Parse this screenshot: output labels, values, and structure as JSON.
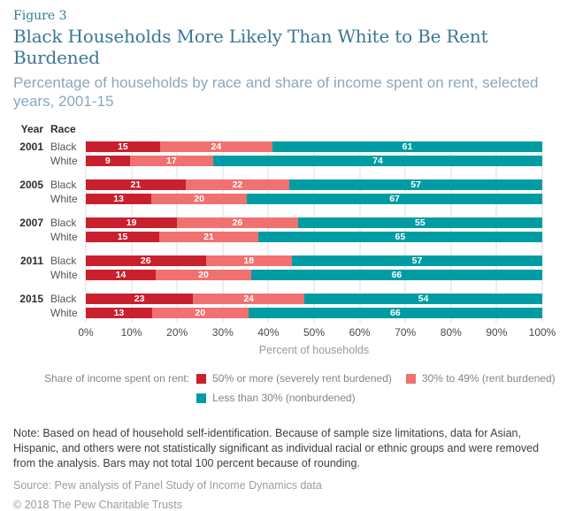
{
  "figure_label": "Figure 3",
  "chart_data": {
    "type": "bar",
    "stacked": true,
    "orientation": "horizontal",
    "title": "Black Households More Likely Than White to Be Rent Burdened",
    "subtitle": "Percentage of households by race and share of income spent on rent, selected years, 2001-15",
    "xlabel": "Percent of households",
    "xlim": [
      0,
      100
    ],
    "x_ticks": [
      "0%",
      "10%",
      "20%",
      "30%",
      "40%",
      "50%",
      "60%",
      "70%",
      "80%",
      "90%",
      "100%"
    ],
    "grid": true,
    "col_headers": {
      "year": "Year",
      "race": "Race"
    },
    "series": [
      {
        "name": "50% or more (severely rent burdened)",
        "color": "#C9202E"
      },
      {
        "name": "30% to 49% (rent burdened)",
        "color": "#F0716F"
      },
      {
        "name": "Less than 30% (nonburdened)",
        "color": "#009CA3"
      }
    ],
    "groups": [
      {
        "year": "2001",
        "rows": [
          {
            "race": "Black",
            "values": [
              15,
              24,
              61
            ]
          },
          {
            "race": "White",
            "values": [
              9,
              17,
              74
            ]
          }
        ]
      },
      {
        "year": "2005",
        "rows": [
          {
            "race": "Black",
            "values": [
              21,
              22,
              57
            ]
          },
          {
            "race": "White",
            "values": [
              13,
              20,
              67
            ]
          }
        ]
      },
      {
        "year": "2007",
        "rows": [
          {
            "race": "Black",
            "values": [
              19,
              26,
              55
            ]
          },
          {
            "race": "White",
            "values": [
              15,
              21,
              65
            ]
          }
        ]
      },
      {
        "year": "2011",
        "rows": [
          {
            "race": "Black",
            "values": [
              26,
              18,
              57
            ]
          },
          {
            "race": "White",
            "values": [
              14,
              20,
              66
            ]
          }
        ]
      },
      {
        "year": "2015",
        "rows": [
          {
            "race": "Black",
            "values": [
              23,
              24,
              54
            ]
          },
          {
            "race": "White",
            "values": [
              13,
              20,
              66
            ]
          }
        ]
      }
    ]
  },
  "legend": {
    "label": "Share of income spent on rent:"
  },
  "note": "Note: Based on head of household self-identification. Because of sample size limitations, data for Asian, Hispanic, and others were not statistically significant as individual racial or ethnic groups and were removed from the analysis. Bars may not total 100 percent because of rounding.",
  "source": "Source: Pew analysis of Panel Study of Income Dynamics data",
  "copyright": "© 2018 The Pew Charitable Trusts"
}
